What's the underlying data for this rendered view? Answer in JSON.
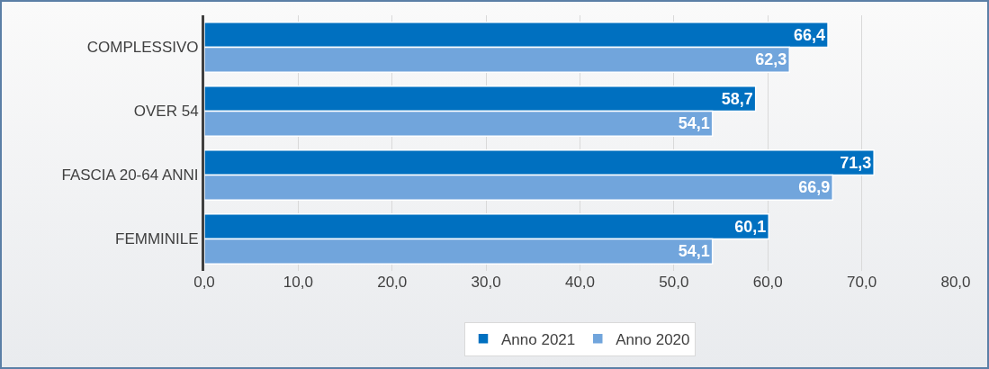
{
  "chart_data": {
    "type": "bar",
    "orientation": "horizontal",
    "categories": [
      "COMPLESSIVO",
      "OVER 54",
      "FASCIA 20-64 ANNI",
      "FEMMINILE"
    ],
    "series": [
      {
        "name": "Anno 2021",
        "color": "#0070c0",
        "values": [
          66.4,
          58.7,
          71.3,
          60.1
        ],
        "value_labels": [
          "66,4",
          "58,7",
          "71,3",
          "60,1"
        ]
      },
      {
        "name": "Anno 2020",
        "color": "#71a5dc",
        "values": [
          62.3,
          54.1,
          66.9,
          54.1
        ],
        "value_labels": [
          "62,3",
          "54,1",
          "66,9",
          "54,1"
        ]
      }
    ],
    "xlim": [
      0,
      80
    ],
    "xticks": [
      {
        "value": 0,
        "label": "0,0"
      },
      {
        "value": 10,
        "label": "10,0"
      },
      {
        "value": 20,
        "label": "20,0"
      },
      {
        "value": 30,
        "label": "30,0"
      },
      {
        "value": 40,
        "label": "40,0"
      },
      {
        "value": 50,
        "label": "50,0"
      },
      {
        "value": 60,
        "label": "60,0"
      },
      {
        "value": 70,
        "label": "70,0"
      },
      {
        "value": 80,
        "label": "80,0"
      }
    ],
    "grid": "x",
    "legend": "bottom"
  }
}
